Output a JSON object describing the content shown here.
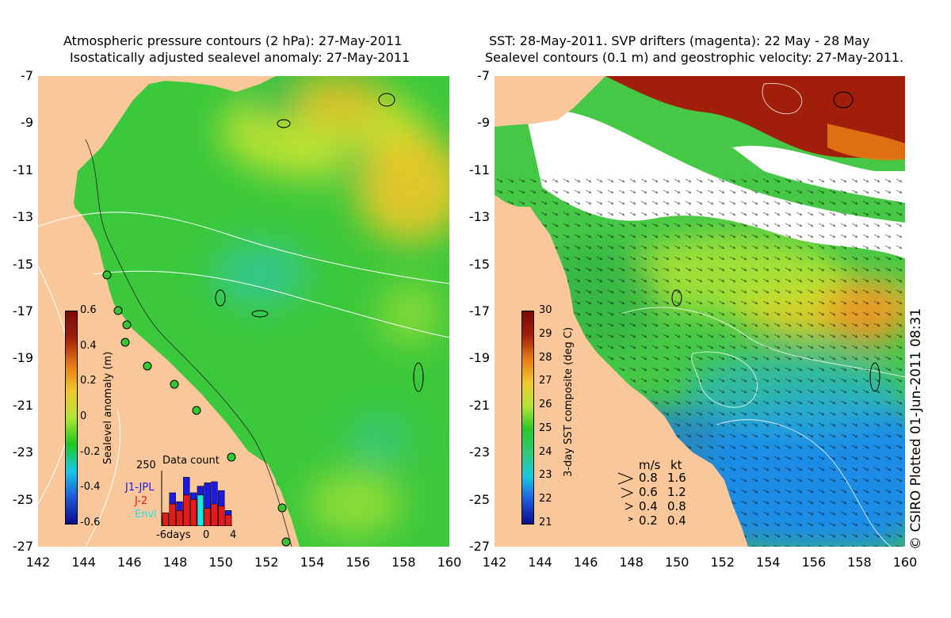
{
  "left_panel": {
    "title_line1": "Atmospheric pressure contours (2 hPa): 27-May-2011",
    "title_line2": "Isostatically adjusted sealevel anomaly: 27-May-2011",
    "colorbar_label": "Sealevel anomaly (m)",
    "colorbar_ticks": [
      "0.6",
      "0.4",
      "0.2",
      "0",
      "-0.2",
      "-0.4",
      "-0.6"
    ],
    "inset": {
      "title": "Data count",
      "ymax_label": "250",
      "x_ticks": [
        "-6days",
        "0",
        "4"
      ],
      "legend": [
        {
          "label": "J1-JPL",
          "color": "#1a1ae6"
        },
        {
          "label": "J-2",
          "color": "#e61a1a"
        },
        {
          "label": "Envi",
          "color": "#19e6e6"
        }
      ]
    }
  },
  "right_panel": {
    "title_line1": "SST: 28-May-2011. SVP drifters (magenta): 22 May - 28 May",
    "title_line2": "Sealevel contours (0.1 m) and geostrophic velocity: 27-May-2011.",
    "colorbar_label": "3-day SST composite (deg C)",
    "colorbar_ticks": [
      "30",
      "29",
      "28",
      "27",
      "26",
      "25",
      "24",
      "23",
      "22",
      "21"
    ],
    "velocity_legend": {
      "header": [
        "m/s",
        "kt"
      ],
      "rows": [
        [
          "0.8",
          "1.6"
        ],
        [
          "0.6",
          "1.2"
        ],
        [
          "0.4",
          "0.8"
        ],
        [
          "0.2",
          "0.4"
        ]
      ]
    }
  },
  "axes": {
    "x_ticks": [
      "142",
      "144",
      "146",
      "148",
      "150",
      "152",
      "154",
      "156",
      "158",
      "160"
    ],
    "y_ticks": [
      "-7",
      "-9",
      "-11",
      "-13",
      "-15",
      "-17",
      "-19",
      "-21",
      "-23",
      "-25",
      "-27"
    ]
  },
  "credit": "© CSIRO Plotted 01-Jun-2011 08:31",
  "colors": {
    "land": "#f9c79a",
    "sla_ramp": [
      "#0a0a8c",
      "#1e5adc",
      "#19c8e6",
      "#1ec81e",
      "#b4e632",
      "#f0c828",
      "#e67814",
      "#a01e0a",
      "#7a0a0a"
    ],
    "sst_ramp": [
      "#0a0a8c",
      "#1e5adc",
      "#19c8e6",
      "#32c878",
      "#28c828",
      "#b4e632",
      "#f0c828",
      "#e67814",
      "#a01e0a",
      "#7a0a0a"
    ]
  },
  "chart_data": [
    {
      "type": "heatmap",
      "title": "Atmospheric pressure contours (2 hPa): 27-May-2011 / Isostatically adjusted sealevel anomaly: 27-May-2011",
      "xlim": [
        142,
        160
      ],
      "ylim": [
        -27,
        -7
      ],
      "colorbar": {
        "label": "Sealevel anomaly (m)",
        "range": [
          -0.6,
          0.6
        ]
      },
      "inset_bar_chart": {
        "title": "Data count",
        "x": [
          -6,
          -5,
          -4,
          -3,
          -2,
          -1,
          0,
          1,
          2,
          3
        ],
        "series": [
          {
            "name": "J1-JPL",
            "values": [
              40,
              150,
              110,
              220,
              150,
              180,
              195,
              200,
              160,
              70
            ]
          },
          {
            "name": "J-2",
            "values": [
              60,
              100,
              70,
              140,
              120,
              110,
              80,
              100,
              90,
              50
            ]
          },
          {
            "name": "Envi",
            "values": [
              0,
              0,
              0,
              0,
              0,
              140,
              0,
              0,
              0,
              0
            ]
          }
        ],
        "ylim": [
          0,
          250
        ]
      }
    },
    {
      "type": "heatmap",
      "title": "SST: 28-May-2011. SVP drifters (magenta): 22 May - 28 May / Sealevel contours (0.1 m) and geostrophic velocity: 27-May-2011.",
      "xlim": [
        142,
        160
      ],
      "ylim": [
        -27,
        -7
      ],
      "colorbar": {
        "label": "3-day SST composite (deg C)",
        "range": [
          21,
          30
        ]
      }
    }
  ]
}
